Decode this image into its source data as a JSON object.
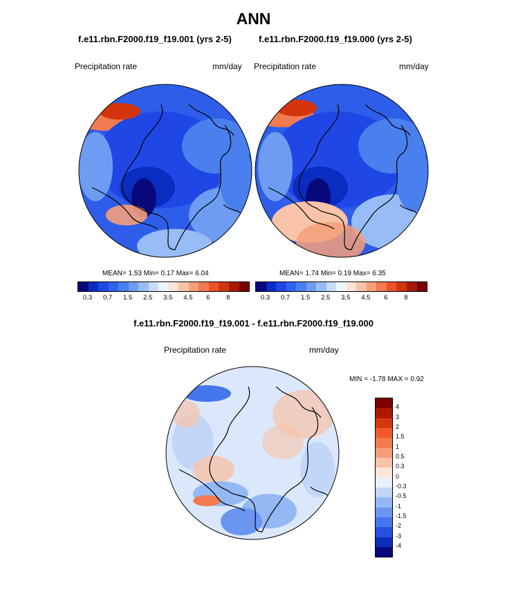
{
  "title": "ANN",
  "panel1": {
    "case": "f.e11.rbn.F2000.f19_f19.001 (yrs 2-5)",
    "variable": "Precipitation rate",
    "units": "mm/day",
    "mean_label": "MEAN=",
    "mean": "1.53",
    "min_label": "Min=",
    "min": "0.17",
    "max_label": "Max=",
    "max": "6.04"
  },
  "panel2": {
    "case": "f.e11.rbn.F2000.f19_f19.000 (yrs 2-5)",
    "variable": "Precipitation rate",
    "units": "mm/day",
    "mean_label": "MEAN=",
    "mean": "1.74",
    "min_label": "Min=",
    "min": "0.19",
    "max_label": "Max=",
    "max": "6.35"
  },
  "diff": {
    "title": "f.e11.rbn.F2000.f19_f19.001 - f.e11.rbn.F2000.f19_f19.000",
    "variable": "Precipitation rate",
    "units": "mm/day",
    "min_label": "MIN =",
    "min": "-1.78",
    "max_label": "MAX =",
    "max": "0.92"
  },
  "colorbar_abs": {
    "tick_labels": [
      "0.3",
      "0.7",
      "1.5",
      "2.5",
      "3.5",
      "4.5",
      "6",
      "8"
    ],
    "colors": [
      "#08087a",
      "#0a2cc0",
      "#1f47e6",
      "#2f63ea",
      "#4a7fee",
      "#6e9cf2",
      "#98bcf6",
      "#c8dcfa",
      "#eef4fb",
      "#fbe3d6",
      "#f8c3a8",
      "#f59f7a",
      "#f27a50",
      "#ec5226",
      "#d4340c",
      "#a81a00",
      "#780000"
    ]
  },
  "colorbar_diff": {
    "tick_labels": [
      "4",
      "3",
      "2",
      "1.5",
      "1",
      "0.5",
      "0.3",
      "0",
      "-0.3",
      "-0.5",
      "-1",
      "-1.5",
      "-2",
      "-3",
      "-4"
    ],
    "colors": [
      "#7d0000",
      "#ad1a00",
      "#d6380e",
      "#f05a2c",
      "#f27a50",
      "#f59f7a",
      "#f8c3a8",
      "#fbe6da",
      "#e8f0fb",
      "#c2d6f8",
      "#94b8f4",
      "#6a96f0",
      "#4676ec",
      "#2650e0",
      "#0d2cb8",
      "#08087a"
    ]
  },
  "colors": {
    "map_base_panel": "#2e5ee9",
    "map_base_diff": "#dbe8fb",
    "coastline": "#000000"
  }
}
